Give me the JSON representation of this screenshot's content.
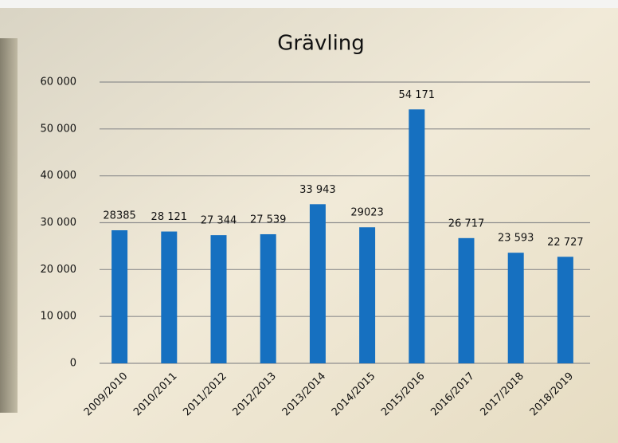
{
  "chart_data": {
    "type": "bar",
    "title": "Grävling",
    "categories": [
      "2009/2010",
      "2010/2011",
      "2011/2012",
      "2012/2013",
      "2013/2014",
      "2014/2015",
      "2015/2016",
      "2016/2017",
      "2017/2018",
      "2018/2019"
    ],
    "values": [
      28385,
      28121,
      27344,
      27539,
      33943,
      29023,
      54171,
      26717,
      23593,
      22727
    ],
    "value_labels": [
      "28385",
      "28 121",
      "27 344",
      "27 539",
      "33 943",
      "29023",
      "54 171",
      "26 717",
      "23 593",
      "22 727"
    ],
    "color": "#1670c0",
    "ylim": [
      0,
      60000
    ],
    "yticks": [
      0,
      {
        "value": 10000,
        "label": "10 000"
      },
      {
        "value": 20000,
        "label": "20 000"
      },
      {
        "value": 30000,
        "label": "30 000"
      },
      {
        "value": 40000,
        "label": "40 000"
      },
      {
        "value": 50000,
        "label": "50 000"
      },
      {
        "value": 60000,
        "label": "60 000"
      }
    ],
    "grid": true
  }
}
